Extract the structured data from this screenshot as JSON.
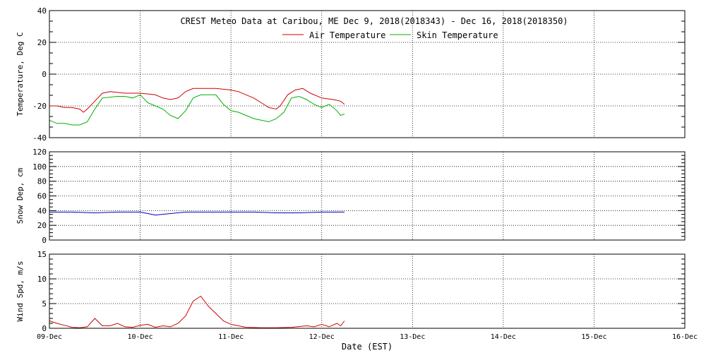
{
  "colors": {
    "air": "#d00000",
    "skin": "#00b000",
    "snow": "#0000c0",
    "wind": "#d00000"
  },
  "chart_data": {
    "type": "line",
    "title": "CREST Meteo Data at Caribou, ME   Dec  9, 2018(2018343) - Dec 16, 2018(2018350)",
    "xlabel": "Date (EST)",
    "x_ticks": [
      "09-Dec",
      "10-Dec",
      "11-Dec",
      "12-Dec",
      "13-Dec",
      "14-Dec",
      "15-Dec",
      "16-Dec"
    ],
    "xlim": [
      "2018-12-09",
      "2018-12-16"
    ],
    "grid": true,
    "panels": [
      {
        "ylabel": "Temperature, Deg C",
        "ylim": [
          -40,
          40
        ],
        "y_ticks": [
          "-40",
          "-20",
          "0",
          "20",
          "40"
        ],
        "legend": "top-center",
        "series": [
          {
            "name": "Air Temperature",
            "x": [
              "2018-12-09 00:00",
              "2018-12-09 02:00",
              "2018-12-09 04:00",
              "2018-12-09 06:00",
              "2018-12-09 08:00",
              "2018-12-09 09:00",
              "2018-12-09 10:00",
              "2018-12-09 12:00",
              "2018-12-09 14:00",
              "2018-12-09 16:00",
              "2018-12-09 20:00",
              "2018-12-10 00:00",
              "2018-12-10 04:00",
              "2018-12-10 06:00",
              "2018-12-10 08:00",
              "2018-12-10 10:00",
              "2018-12-10 12:00",
              "2018-12-10 14:00",
              "2018-12-10 16:00",
              "2018-12-10 20:00",
              "2018-12-11 00:00",
              "2018-12-11 02:00",
              "2018-12-11 04:00",
              "2018-12-11 06:00",
              "2018-12-11 08:00",
              "2018-12-11 10:00",
              "2018-12-11 12:00",
              "2018-12-11 13:00",
              "2018-12-11 15:00",
              "2018-12-11 17:00",
              "2018-12-11 19:00",
              "2018-12-11 21:00",
              "2018-12-12 00:00",
              "2018-12-12 03:00",
              "2018-12-12 05:00",
              "2018-12-12 06:00"
            ],
            "y": [
              -20,
              -20,
              -21,
              -21,
              -22,
              -24,
              -22,
              -17,
              -12,
              -11,
              -12,
              -12,
              -13,
              -15,
              -16,
              -15,
              -11,
              -9,
              -9,
              -9,
              -10,
              -11,
              -13,
              -15,
              -18,
              -21,
              -22,
              -20,
              -13,
              -10,
              -9,
              -12,
              -15,
              -16,
              -17,
              -19
            ]
          },
          {
            "name": "Skin Temperature",
            "x": [
              "2018-12-09 00:00",
              "2018-12-09 02:00",
              "2018-12-09 04:00",
              "2018-12-09 06:00",
              "2018-12-09 08:00",
              "2018-12-09 10:00",
              "2018-12-09 12:00",
              "2018-12-09 14:00",
              "2018-12-09 18:00",
              "2018-12-09 20:00",
              "2018-12-09 22:00",
              "2018-12-10 00:00",
              "2018-12-10 02:00",
              "2018-12-10 04:00",
              "2018-12-10 06:00",
              "2018-12-10 08:00",
              "2018-12-10 10:00",
              "2018-12-10 12:00",
              "2018-12-10 14:00",
              "2018-12-10 16:00",
              "2018-12-10 20:00",
              "2018-12-10 22:00",
              "2018-12-11 00:00",
              "2018-12-11 02:00",
              "2018-12-11 04:00",
              "2018-12-11 06:00",
              "2018-12-11 08:00",
              "2018-12-11 10:00",
              "2018-12-11 12:00",
              "2018-12-11 14:00",
              "2018-12-11 16:00",
              "2018-12-11 18:00",
              "2018-12-11 20:00",
              "2018-12-11 22:00",
              "2018-12-12 00:00",
              "2018-12-12 02:00",
              "2018-12-12 04:00",
              "2018-12-12 05:00",
              "2018-12-12 06:00"
            ],
            "y": [
              -29,
              -31,
              -31,
              -32,
              -32,
              -30,
              -22,
              -15,
              -14,
              -14,
              -15,
              -13,
              -18,
              -20,
              -22,
              -26,
              -28,
              -23,
              -15,
              -13,
              -13,
              -19,
              -23,
              -24,
              -26,
              -28,
              -29,
              -30,
              -28,
              -24,
              -15,
              -14,
              -16,
              -19,
              -21,
              -19,
              -23,
              -26,
              -25
            ]
          }
        ]
      },
      {
        "ylabel": "Snow Dep, cm",
        "ylim": [
          0,
          120
        ],
        "y_ticks": [
          "0",
          "20",
          "40",
          "60",
          "80",
          "100",
          "120"
        ],
        "series": [
          {
            "x": [
              "2018-12-09 00:00",
              "2018-12-09 06:00",
              "2018-12-09 12:00",
              "2018-12-09 18:00",
              "2018-12-10 00:00",
              "2018-12-10 04:00",
              "2018-12-10 06:00",
              "2018-12-10 08:00",
              "2018-12-10 12:00",
              "2018-12-10 18:00",
              "2018-12-11 00:00",
              "2018-12-11 06:00",
              "2018-12-11 12:00",
              "2018-12-11 18:00",
              "2018-12-12 00:00",
              "2018-12-12 06:00"
            ],
            "y": [
              38,
              38,
              37,
              38,
              38,
              34,
              35,
              36,
              38,
              38,
              38,
              38,
              37,
              37,
              38,
              38
            ]
          }
        ]
      },
      {
        "ylabel": "Wind Spd, m/s",
        "ylim": [
          0,
          15
        ],
        "y_ticks": [
          "0",
          "5",
          "10",
          "15"
        ],
        "series": [
          {
            "x": [
              "2018-12-09 00:00",
              "2018-12-09 02:00",
              "2018-12-09 04:00",
              "2018-12-09 06:00",
              "2018-12-09 08:00",
              "2018-12-09 10:00",
              "2018-12-09 12:00",
              "2018-12-09 14:00",
              "2018-12-09 16:00",
              "2018-12-09 18:00",
              "2018-12-09 20:00",
              "2018-12-09 22:00",
              "2018-12-10 00:00",
              "2018-12-10 02:00",
              "2018-12-10 04:00",
              "2018-12-10 06:00",
              "2018-12-10 08:00",
              "2018-12-10 10:00",
              "2018-12-10 12:00",
              "2018-12-10 14:00",
              "2018-12-10 16:00",
              "2018-12-10 18:00",
              "2018-12-10 20:00",
              "2018-12-10 22:00",
              "2018-12-11 00:00",
              "2018-12-11 02:00",
              "2018-12-11 04:00",
              "2018-12-11 08:00",
              "2018-12-11 12:00",
              "2018-12-11 16:00",
              "2018-12-11 20:00",
              "2018-12-11 22:00",
              "2018-12-12 00:00",
              "2018-12-12 02:00",
              "2018-12-12 04:00",
              "2018-12-12 05:00",
              "2018-12-12 06:00"
            ],
            "y": [
              1.5,
              1.0,
              0.6,
              0.2,
              0.1,
              0.3,
              2.0,
              0.5,
              0.5,
              1.0,
              0.3,
              0.2,
              0.6,
              0.8,
              0.2,
              0.5,
              0.3,
              1.0,
              2.5,
              5.5,
              6.5,
              4.5,
              3.0,
              1.5,
              0.8,
              0.5,
              0.2,
              0.1,
              0.1,
              0.2,
              0.5,
              0.3,
              0.8,
              0.3,
              1.0,
              0.5,
              1.5
            ]
          }
        ]
      }
    ]
  }
}
